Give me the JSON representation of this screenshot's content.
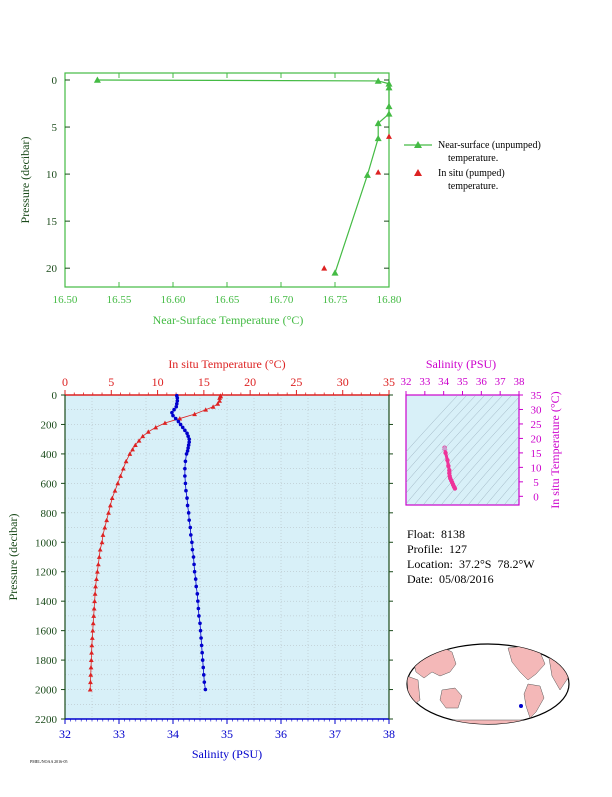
{
  "colors": {
    "surface": "#44bb44",
    "insitu_temp": "#dd2222",
    "salinity": "#0000cc",
    "magenta": "#cc00cc",
    "plot_bg": "#d8f0f8",
    "axis_dark": "#1a4a1a"
  },
  "info": {
    "float": "Float:  8138",
    "profile": "Profile:  127",
    "location": "Location:  37.2°S  78.2°W",
    "date": "Date:  05/08/2016"
  },
  "footer_text": "PMEL/NOAA 2016-05",
  "chart_data": [
    {
      "type": "line",
      "id": "near-surface",
      "xlabel": "Near-Surface Temperature (°C)",
      "ylabel": "Pressure (decibar)",
      "xlim": [
        16.5,
        16.8
      ],
      "ylim": [
        0,
        22
      ],
      "x_ticks": [
        "16.50",
        "16.55",
        "16.60",
        "16.65",
        "16.70",
        "16.75",
        "16.80"
      ],
      "y_ticks": [
        "0",
        "5",
        "10",
        "15",
        "20"
      ],
      "legend": [
        {
          "name": "Near-surface (unpumped)",
          "sub": "temperature."
        },
        {
          "name": "In situ (pumped)",
          "sub": "temperature."
        }
      ],
      "legend_position": "right",
      "series": [
        {
          "name": "Near-surface (unpumped) temperature.",
          "marker": "triangle",
          "line": true,
          "x": [
            16.53,
            16.79,
            16.8,
            16.8,
            16.8,
            16.8,
            16.79,
            16.79,
            16.78,
            16.75
          ],
          "y": [
            0.0,
            0.1,
            0.4,
            0.8,
            2.8,
            3.6,
            4.6,
            6.2,
            10.1,
            20.5
          ]
        },
        {
          "name": "In situ (pumped) temperature.",
          "marker": "triangle",
          "line": false,
          "x": [
            16.8,
            16.79,
            16.74
          ],
          "y": [
            6.0,
            9.8,
            20.0
          ]
        }
      ]
    },
    {
      "type": "line",
      "id": "profile",
      "top_xlabel": "In situ Temperature (°C)",
      "bottom_xlabel": "Salinity (PSU)",
      "ylabel": "Pressure (decibar)",
      "temp_lim": [
        0,
        35
      ],
      "sal_lim": [
        32,
        38
      ],
      "ylim": [
        0,
        2200
      ],
      "temp_ticks": [
        "0",
        "5",
        "10",
        "15",
        "20",
        "25",
        "30",
        "35"
      ],
      "sal_ticks": [
        "32",
        "33",
        "34",
        "35",
        "36",
        "37",
        "38"
      ],
      "y_ticks": [
        "0",
        "200",
        "400",
        "600",
        "800",
        "1000",
        "1200",
        "1400",
        "1600",
        "1800",
        "2000",
        "2200"
      ],
      "temperature": {
        "p": [
          5,
          10,
          20,
          40,
          60,
          80,
          100,
          130,
          160,
          190,
          220,
          250,
          280,
          310,
          340,
          370,
          400,
          450,
          500,
          550,
          600,
          650,
          700,
          750,
          800,
          850,
          900,
          950,
          1000,
          1050,
          1100,
          1150,
          1200,
          1250,
          1300,
          1350,
          1400,
          1450,
          1500,
          1550,
          1600,
          1650,
          1700,
          1750,
          1800,
          1850,
          1900,
          1950,
          2000
        ],
        "t": [
          16.8,
          16.8,
          16.7,
          16.7,
          16.5,
          16.0,
          15.2,
          14.0,
          12.4,
          10.8,
          9.8,
          9.0,
          8.4,
          8.0,
          7.6,
          7.3,
          7.0,
          6.6,
          6.3,
          6.0,
          5.7,
          5.4,
          5.1,
          4.9,
          4.7,
          4.5,
          4.3,
          4.1,
          4.0,
          3.8,
          3.7,
          3.6,
          3.5,
          3.4,
          3.3,
          3.25,
          3.2,
          3.15,
          3.1,
          3.05,
          3.0,
          2.95,
          2.9,
          2.87,
          2.84,
          2.81,
          2.78,
          2.75,
          2.72
        ]
      },
      "salinity": {
        "p": [
          5,
          20,
          40,
          60,
          80,
          100,
          120,
          140,
          160,
          180,
          200,
          220,
          240,
          260,
          280,
          300,
          320,
          340,
          360,
          380,
          400,
          450,
          500,
          550,
          600,
          650,
          700,
          750,
          800,
          850,
          900,
          950,
          1000,
          1050,
          1100,
          1150,
          1200,
          1250,
          1300,
          1350,
          1400,
          1450,
          1500,
          1550,
          1600,
          1650,
          1700,
          1750,
          1800,
          1850,
          1900,
          1950,
          2000
        ],
        "s": [
          34.07,
          34.08,
          34.08,
          34.07,
          34.06,
          34.02,
          33.98,
          34.0,
          34.05,
          34.1,
          34.14,
          34.18,
          34.22,
          34.26,
          34.28,
          34.3,
          34.3,
          34.29,
          34.28,
          34.27,
          34.25,
          34.23,
          34.22,
          34.22,
          34.23,
          34.24,
          34.26,
          34.27,
          34.29,
          34.3,
          34.32,
          34.33,
          34.35,
          34.36,
          34.38,
          34.39,
          34.4,
          34.42,
          34.43,
          34.45,
          34.46,
          34.47,
          34.48,
          34.5,
          34.51,
          34.52,
          34.53,
          34.54,
          34.55,
          34.56,
          34.57,
          34.58,
          34.6
        ]
      }
    },
    {
      "type": "scatter",
      "id": "ts-diagram",
      "xlabel": "Salinity (PSU)",
      "ylabel": "In situ Temperature (°C)",
      "xlim": [
        32,
        38
      ],
      "ylim": [
        -3,
        35
      ],
      "x_ticks": [
        "32",
        "33",
        "34",
        "35",
        "36",
        "37",
        "38"
      ],
      "y_ticks": [
        "0",
        "5",
        "10",
        "15",
        "20",
        "25",
        "30",
        "35"
      ],
      "points": {
        "s": [
          34.05,
          34.1,
          34.2,
          34.25,
          34.3,
          34.3,
          34.32,
          34.35,
          34.4,
          34.45,
          34.5,
          34.55,
          34.6
        ],
        "t": [
          16.8,
          15.0,
          12.5,
          10.5,
          9.0,
          8.0,
          7.0,
          6.2,
          5.5,
          4.8,
          4.0,
          3.3,
          2.7
        ]
      }
    }
  ]
}
